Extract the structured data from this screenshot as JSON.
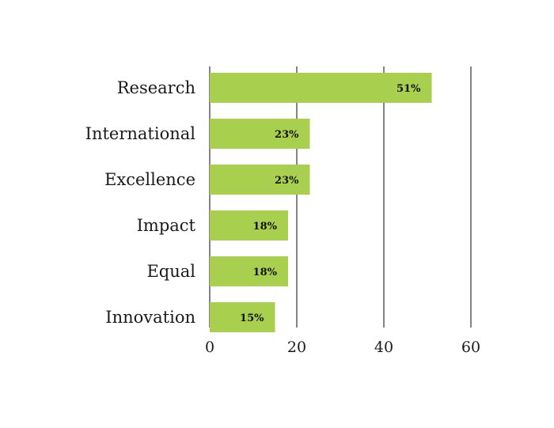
{
  "chart_data": {
    "type": "bar",
    "orientation": "horizontal",
    "categories": [
      "Research",
      "International",
      "Excellence",
      "Impact",
      "Equal",
      "Innovation"
    ],
    "values": [
      51,
      23,
      23,
      18,
      18,
      15
    ],
    "data_labels": [
      "51%",
      "23%",
      "23%",
      "18%",
      "18%",
      "15%"
    ],
    "xlim": [
      0,
      60
    ],
    "xticks": [
      0,
      20,
      40,
      60
    ],
    "xtick_labels": [
      "0",
      "20",
      "40",
      "60"
    ],
    "title": "",
    "xlabel": "",
    "ylabel": "",
    "grid": "vertical",
    "legend": "none",
    "colors": {
      "bar": "#a8cf4e",
      "grid": "#333333",
      "text": "#1a1a1a"
    }
  }
}
